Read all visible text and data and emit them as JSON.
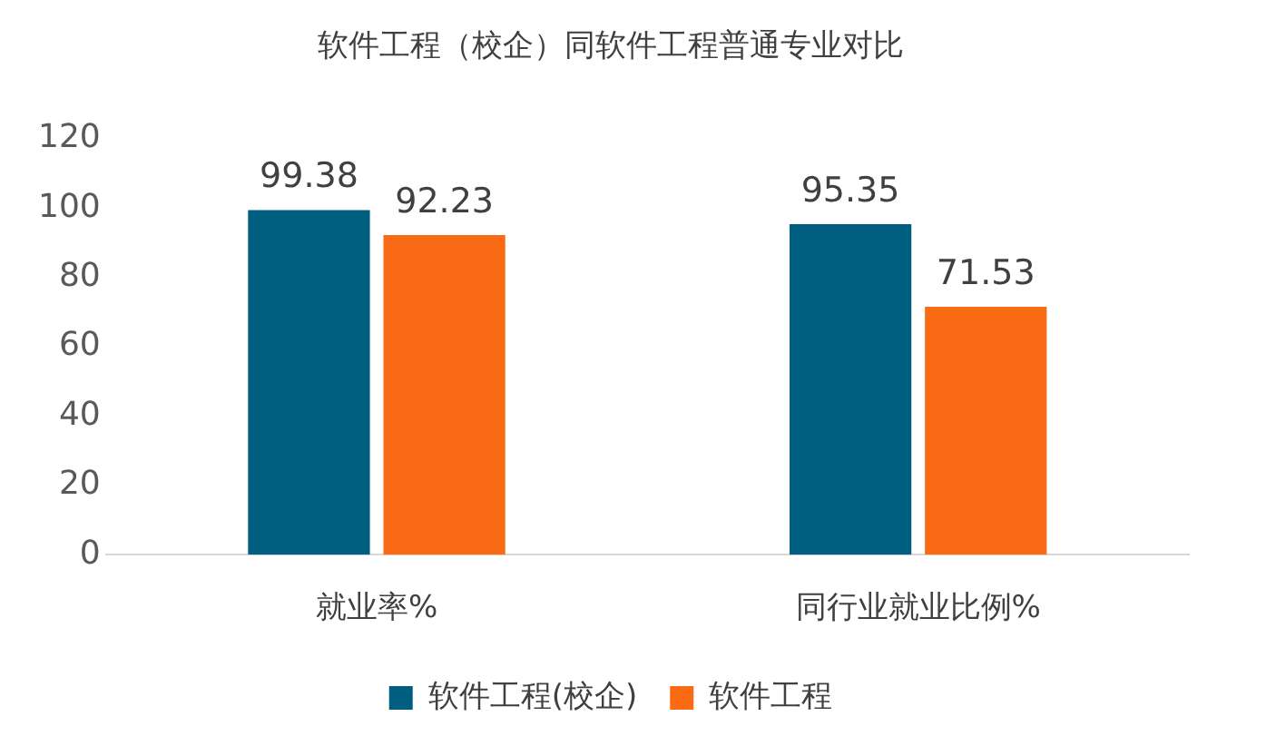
{
  "chart_data": {
    "type": "bar",
    "title": "软件工程（校企）同软件工程普通专业对比",
    "categories": [
      "就业率%",
      "同行业就业比例%"
    ],
    "series": [
      {
        "name": "软件工程(校企)",
        "color": "#005f80",
        "values": [
          99.38,
          95.35
        ]
      },
      {
        "name": "软件工程",
        "color": "#f96b15",
        "values": [
          92.23,
          71.53
        ]
      }
    ],
    "ylim": [
      0,
      120
    ],
    "yticks": [
      0,
      20,
      40,
      60,
      80,
      100,
      120
    ],
    "grid": false,
    "legend": "bottom",
    "data_labels": true
  }
}
